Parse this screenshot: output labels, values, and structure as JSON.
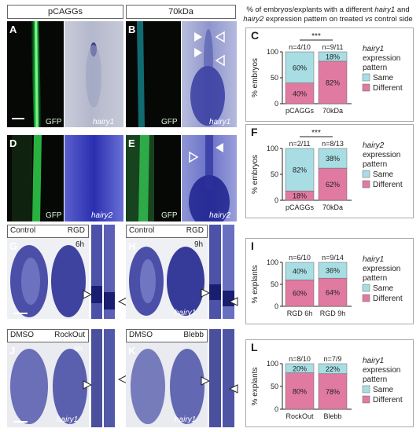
{
  "headers": {
    "pcaggs": "pCAGGs",
    "kda70": "70kDa"
  },
  "note": {
    "line1_pre": "% of embryos/explants with a different ",
    "line1_gene1": "hairy1",
    "line1_mid": " and",
    "line2_gene2": "hairy2",
    "line2_post": " expression pattern on treated ",
    "line2_vs": "vs",
    "line2_end": " control side"
  },
  "panels": {
    "A": {
      "letter": "A",
      "overlay": "GFP",
      "gene": "hairy1"
    },
    "B": {
      "letter": "B",
      "overlay": "GFP",
      "gene": "hairy1"
    },
    "D": {
      "letter": "D",
      "overlay": "GFP",
      "gene": "hairy2"
    },
    "E": {
      "letter": "E",
      "overlay": "GFP",
      "gene": "hairy2"
    },
    "G": {
      "letter": "G",
      "ctrl": "Control",
      "treat": "RGD",
      "time": "6h"
    },
    "H": {
      "letter": "H",
      "ctrl": "Control",
      "treat": "RGD",
      "time": "9h",
      "gene": "hairy1"
    },
    "J": {
      "letter": "J",
      "ctrl": "DMSO",
      "treat": "RockOut",
      "time": "6h",
      "gene": "hairy1"
    },
    "K": {
      "letter": "K",
      "ctrl": "DMSO",
      "treat": "Blebb",
      "gene": "hairy1"
    }
  },
  "chart_data": [
    {
      "panel": "C",
      "type": "bar",
      "stacked": true,
      "categories": [
        "pCAGGs",
        "70kDa"
      ],
      "n_labels": [
        "n=4/10",
        "n=9/11"
      ],
      "significance": "***",
      "ylabel": "% embryos",
      "ylim": [
        0,
        100
      ],
      "yticks": [
        0,
        50,
        100
      ],
      "series": [
        {
          "name": "Different",
          "values": [
            40,
            82
          ],
          "labels": [
            "40%",
            "82%"
          ],
          "color": "#e07aa0"
        },
        {
          "name": "Same",
          "values": [
            60,
            18
          ],
          "labels": [
            "60%",
            "18%"
          ],
          "color": "#a8dde3"
        }
      ],
      "legend_gene": "hairy1",
      "legend_line2": "expression",
      "legend_line3": "pattern"
    },
    {
      "panel": "F",
      "type": "bar",
      "stacked": true,
      "categories": [
        "pCAGGs",
        "70kDa"
      ],
      "n_labels": [
        "n=2/11",
        "n=8/13"
      ],
      "significance": "***",
      "ylabel": "% embryos",
      "ylim": [
        0,
        100
      ],
      "yticks": [
        0,
        50,
        100
      ],
      "series": [
        {
          "name": "Different",
          "values": [
            18,
            62
          ],
          "labels": [
            "18%",
            "62%"
          ],
          "color": "#e07aa0"
        },
        {
          "name": "Same",
          "values": [
            82,
            38
          ],
          "labels": [
            "82%",
            "38%"
          ],
          "color": "#a8dde3"
        }
      ],
      "legend_gene": "hairy2",
      "legend_line2": "expression",
      "legend_line3": "pattern"
    },
    {
      "panel": "I",
      "type": "bar",
      "stacked": true,
      "categories": [
        "RGD 6h",
        "RGD 9h"
      ],
      "n_labels": [
        "n=6/10",
        "n=9/14"
      ],
      "significance": "",
      "ylabel": "% explants",
      "ylim": [
        0,
        100
      ],
      "yticks": [
        0,
        50,
        100
      ],
      "series": [
        {
          "name": "Different",
          "values": [
            60,
            64
          ],
          "labels": [
            "60%",
            "64%"
          ],
          "color": "#e07aa0"
        },
        {
          "name": "Same",
          "values": [
            40,
            36
          ],
          "labels": [
            "40%",
            "36%"
          ],
          "color": "#a8dde3"
        }
      ],
      "legend_gene": "hairy1",
      "legend_line2": "expression",
      "legend_line3": "pattern"
    },
    {
      "panel": "L",
      "type": "bar",
      "stacked": true,
      "categories": [
        "RockOut",
        "Blebb"
      ],
      "n_labels": [
        "n=8/10",
        "n=7/9"
      ],
      "significance": "",
      "ylabel": "% explants",
      "ylim": [
        0,
        100
      ],
      "yticks": [
        0,
        50,
        100
      ],
      "series": [
        {
          "name": "Different",
          "values": [
            80,
            78
          ],
          "labels": [
            "80%",
            "78%"
          ],
          "color": "#e07aa0"
        },
        {
          "name": "Same",
          "values": [
            20,
            22
          ],
          "labels": [
            "20%",
            "22%"
          ],
          "color": "#a8dde3"
        }
      ],
      "legend_gene": "hairy1",
      "legend_line2": "expression",
      "legend_line3": "pattern"
    }
  ]
}
